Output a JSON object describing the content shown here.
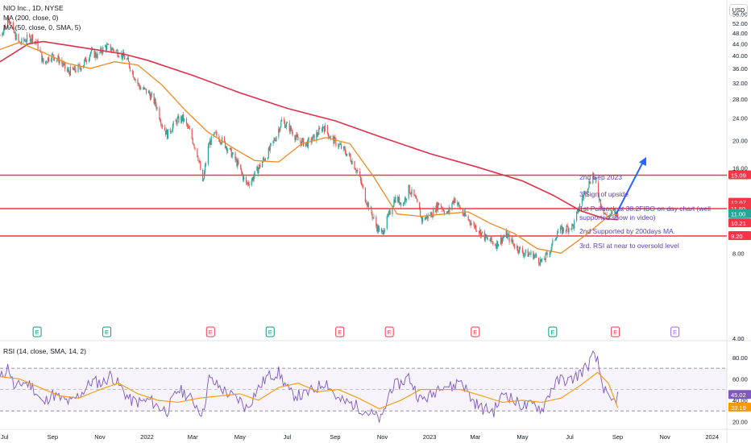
{
  "header": {
    "title": "NIO Inc., 1D, NYSE",
    "ma200_label": "MA (200, close, 0)",
    "ma50_label": "MA (50, close, 0, SMA, 5)",
    "currency": "USD"
  },
  "annotations": {
    "line1": "2nd Sep 2023",
    "line2": "3 Sign of upside",
    "line3": "1st Pullback at 38.2FIBO on day chart (well supported show in video)",
    "line4": "2nd Supported by 200days MA.",
    "line5": "3rd. RSI at near to oversold level"
  },
  "rsi_label": "RSI (14, close, SMA, 14, 2)",
  "colors": {
    "up": "#26a69a",
    "down": "#ef5350",
    "ma200": "#e0304a",
    "ma50": "#f08a24",
    "rsi": "#7e57c2",
    "rsi_ma": "#ff9800",
    "hline": "#f23645",
    "annotation": "#5c3fb8",
    "arrow": "#2962ff",
    "earnings_past_up": "#089981",
    "earnings_past_down": "#f23645",
    "earnings_future": "#9c6ade"
  },
  "chart_data": [
    {
      "type": "candlestick",
      "title": "NIO Inc., 1D, NYSE",
      "y_scale": "log",
      "ylim": [
        4,
        62
      ],
      "y_ticks": [
        "56.00",
        "52.00",
        "48.00",
        "44.00",
        "40.00",
        "36.00",
        "32.00",
        "28.00",
        "24.00",
        "20.00",
        "16.00",
        "12.00",
        "8.00",
        "4.00"
      ],
      "x_ticks": [
        "Jul",
        "Sep",
        "Nov",
        "2022",
        "Mar",
        "May",
        "Jul",
        "Sep",
        "Nov",
        "2023",
        "Mar",
        "May",
        "Jul",
        "Sep",
        "Nov",
        "2024"
      ],
      "x_range": [
        "2021-06-25",
        "2024-01-20"
      ],
      "close_path": [
        [
          "2021-06-25",
          47.0
        ],
        [
          "2021-07-02",
          51.0
        ],
        [
          "2021-07-06",
          55.0
        ],
        [
          "2021-07-12",
          48.5
        ],
        [
          "2021-07-20",
          44.0
        ],
        [
          "2021-07-28",
          45.5
        ],
        [
          "2021-08-05",
          46.5
        ],
        [
          "2021-08-12",
          44.0
        ],
        [
          "2021-08-20",
          37.5
        ],
        [
          "2021-08-30",
          40.0
        ],
        [
          "2021-09-10",
          38.5
        ],
        [
          "2021-09-20",
          35.0
        ],
        [
          "2021-09-30",
          35.5
        ],
        [
          "2021-10-10",
          37.0
        ],
        [
          "2021-10-20",
          41.0
        ],
        [
          "2021-10-29",
          40.0
        ],
        [
          "2021-11-08",
          43.0
        ],
        [
          "2021-11-18",
          42.0
        ],
        [
          "2021-11-28",
          40.5
        ],
        [
          "2021-12-06",
          38.5
        ],
        [
          "2021-12-15",
          34.0
        ],
        [
          "2021-12-22",
          31.0
        ],
        [
          "2022-01-03",
          29.5
        ],
        [
          "2022-01-12",
          27.0
        ],
        [
          "2022-01-20",
          23.0
        ],
        [
          "2022-01-27",
          21.0
        ],
        [
          "2022-02-08",
          23.5
        ],
        [
          "2022-02-16",
          24.0
        ],
        [
          "2022-02-25",
          21.5
        ],
        [
          "2022-03-08",
          17.5
        ],
        [
          "2022-03-14",
          14.0
        ],
        [
          "2022-03-22",
          19.5
        ],
        [
          "2022-03-30",
          21.0
        ],
        [
          "2022-04-08",
          20.0
        ],
        [
          "2022-04-20",
          18.0
        ],
        [
          "2022-04-28",
          16.5
        ],
        [
          "2022-05-09",
          14.0
        ],
        [
          "2022-05-16",
          14.5
        ],
        [
          "2022-05-25",
          16.0
        ],
        [
          "2022-06-06",
          18.0
        ],
        [
          "2022-06-16",
          20.5
        ],
        [
          "2022-06-24",
          23.5
        ],
        [
          "2022-07-05",
          22.0
        ],
        [
          "2022-07-15",
          20.0
        ],
        [
          "2022-07-26",
          19.5
        ],
        [
          "2022-08-05",
          20.5
        ],
        [
          "2022-08-17",
          22.5
        ],
        [
          "2022-08-26",
          20.5
        ],
        [
          "2022-09-08",
          19.0
        ],
        [
          "2022-09-20",
          17.5
        ],
        [
          "2022-09-30",
          15.5
        ],
        [
          "2022-10-10",
          12.5
        ],
        [
          "2022-10-24",
          10.0
        ],
        [
          "2022-10-31",
          9.3
        ],
        [
          "2022-11-10",
          11.0
        ],
        [
          "2022-11-17",
          12.5
        ],
        [
          "2022-11-28",
          12.0
        ],
        [
          "2022-12-05",
          13.5
        ],
        [
          "2022-12-13",
          12.5
        ],
        [
          "2022-12-22",
          10.5
        ],
        [
          "2023-01-04",
          11.0
        ],
        [
          "2023-01-13",
          12.0
        ],
        [
          "2023-01-24",
          11.0
        ],
        [
          "2023-02-02",
          12.5
        ],
        [
          "2023-02-13",
          11.0
        ],
        [
          "2023-02-28",
          10.0
        ],
        [
          "2023-03-15",
          9.0
        ],
        [
          "2023-03-28",
          8.6
        ],
        [
          "2023-04-10",
          9.3
        ],
        [
          "2023-04-21",
          8.5
        ],
        [
          "2023-05-03",
          8.0
        ],
        [
          "2023-05-15",
          7.9
        ],
        [
          "2023-05-26",
          7.4
        ],
        [
          "2023-06-06",
          8.2
        ],
        [
          "2023-06-15",
          9.5
        ],
        [
          "2023-06-27",
          9.8
        ],
        [
          "2023-07-06",
          10.0
        ],
        [
          "2023-07-17",
          12.5
        ],
        [
          "2023-07-25",
          14.0
        ],
        [
          "2023-07-31",
          15.2
        ],
        [
          "2023-08-04",
          14.0
        ],
        [
          "2023-08-10",
          12.0
        ],
        [
          "2023-08-17",
          10.8
        ],
        [
          "2023-08-25",
          11.0
        ],
        [
          "2023-09-01",
          11.0
        ]
      ],
      "ma200": [
        [
          "2021-06-25",
          38.0
        ],
        [
          "2021-08-01",
          44.0
        ],
        [
          "2021-08-20",
          44.8
        ],
        [
          "2021-10-01",
          43.0
        ],
        [
          "2021-12-01",
          40.5
        ],
        [
          "2022-01-01",
          38.5
        ],
        [
          "2022-03-01",
          34.0
        ],
        [
          "2022-05-01",
          29.5
        ],
        [
          "2022-07-01",
          26.0
        ],
        [
          "2022-09-01",
          23.5
        ],
        [
          "2022-11-01",
          20.5
        ],
        [
          "2023-01-01",
          18.0
        ],
        [
          "2023-03-01",
          16.2
        ],
        [
          "2023-05-01",
          14.4
        ],
        [
          "2023-06-10",
          12.8
        ],
        [
          "2023-07-15",
          11.3
        ],
        [
          "2023-08-15",
          10.6
        ],
        [
          "2023-09-01",
          10.5
        ]
      ],
      "ma50": [
        [
          "2021-06-25",
          42.0
        ],
        [
          "2021-07-20",
          44.5
        ],
        [
          "2021-08-20",
          41.0
        ],
        [
          "2021-09-20",
          37.5
        ],
        [
          "2021-10-20",
          36.0
        ],
        [
          "2021-11-20",
          38.0
        ],
        [
          "2021-12-20",
          37.0
        ],
        [
          "2022-01-20",
          31.5
        ],
        [
          "2022-02-20",
          25.5
        ],
        [
          "2022-03-20",
          21.5
        ],
        [
          "2022-04-20",
          19.0
        ],
        [
          "2022-05-20",
          17.0
        ],
        [
          "2022-06-20",
          16.8
        ],
        [
          "2022-07-20",
          19.5
        ],
        [
          "2022-08-20",
          20.5
        ],
        [
          "2022-09-20",
          19.5
        ],
        [
          "2022-10-20",
          15.0
        ],
        [
          "2022-11-20",
          11.0
        ],
        [
          "2022-12-20",
          10.8
        ],
        [
          "2023-01-20",
          11.0
        ],
        [
          "2023-02-20",
          11.2
        ],
        [
          "2023-03-20",
          10.2
        ],
        [
          "2023-04-20",
          9.4
        ],
        [
          "2023-05-20",
          8.3
        ],
        [
          "2023-06-20",
          8.0
        ],
        [
          "2023-07-20",
          9.2
        ],
        [
          "2023-08-20",
          10.8
        ],
        [
          "2023-09-01",
          11.0
        ]
      ],
      "horizontal_levels": [
        15.09,
        11.5,
        9.2
      ],
      "price_labels": [
        {
          "value": 15.09,
          "text": "15.09",
          "color": "#f23645"
        },
        {
          "value": 12.07,
          "text": "12.07",
          "color": "#f23645"
        },
        {
          "value": 11.5,
          "text": "11.50",
          "color": "#f23645"
        },
        {
          "value": 11.0,
          "text": "11.00",
          "color": "#26a69a"
        },
        {
          "value": 10.21,
          "text": "10.21",
          "color": "#f23645"
        },
        {
          "value": 9.2,
          "text": "9.20",
          "color": "#f23645"
        }
      ],
      "arrow": {
        "from": [
          "2023-08-30",
          11.0
        ],
        "to": [
          "2023-10-08",
          17.5
        ]
      },
      "earnings": [
        {
          "date": "2021-08-12",
          "label": "E",
          "kind": "past_up"
        },
        {
          "date": "2021-11-10",
          "label": "E",
          "kind": "past_up"
        },
        {
          "date": "2022-03-24",
          "label": "E",
          "kind": "past_down"
        },
        {
          "date": "2022-06-09",
          "label": "E",
          "kind": "past_up"
        },
        {
          "date": "2022-09-07",
          "label": "E",
          "kind": "past_down"
        },
        {
          "date": "2022-11-10",
          "label": "E",
          "kind": "past_down"
        },
        {
          "date": "2023-03-01",
          "label": "E",
          "kind": "past_down"
        },
        {
          "date": "2023-06-09",
          "label": "E",
          "kind": "past_up"
        },
        {
          "date": "2023-08-29",
          "label": "E",
          "kind": "past_down"
        },
        {
          "date": "2023-11-14",
          "label": "E",
          "kind": "future"
        }
      ]
    },
    {
      "type": "line",
      "title": "RSI (14, close, SMA, 14, 2)",
      "ylim": [
        15,
        92
      ],
      "y_ticks": [
        "80.00",
        "60.00",
        "40.00",
        "20.00"
      ],
      "bands": [
        70,
        50,
        30
      ],
      "last_value": "45.02",
      "last_ma": "33.19",
      "rsi_path": [
        [
          "2021-06-25",
          60
        ],
        [
          "2021-07-06",
          72
        ],
        [
          "2021-07-14",
          50
        ],
        [
          "2021-07-25",
          57
        ],
        [
          "2021-08-05",
          54
        ],
        [
          "2021-08-20",
          36
        ],
        [
          "2021-08-30",
          46
        ],
        [
          "2021-09-15",
          40
        ],
        [
          "2021-09-25",
          38
        ],
        [
          "2021-10-10",
          48
        ],
        [
          "2021-10-22",
          58
        ],
        [
          "2021-11-05",
          56
        ],
        [
          "2021-11-15",
          64
        ],
        [
          "2021-11-28",
          52
        ],
        [
          "2021-12-10",
          40
        ],
        [
          "2021-12-22",
          38
        ],
        [
          "2022-01-05",
          40
        ],
        [
          "2022-01-15",
          34
        ],
        [
          "2022-01-27",
          30
        ],
        [
          "2022-02-10",
          50
        ],
        [
          "2022-02-20",
          46
        ],
        [
          "2022-03-05",
          36
        ],
        [
          "2022-03-14",
          27
        ],
        [
          "2022-03-22",
          60
        ],
        [
          "2022-04-05",
          52
        ],
        [
          "2022-04-20",
          44
        ],
        [
          "2022-05-01",
          40
        ],
        [
          "2022-05-10",
          32
        ],
        [
          "2022-05-20",
          46
        ],
        [
          "2022-06-05",
          62
        ],
        [
          "2022-06-20",
          66
        ],
        [
          "2022-07-05",
          46
        ],
        [
          "2022-07-20",
          44
        ],
        [
          "2022-08-05",
          50
        ],
        [
          "2022-08-20",
          58
        ],
        [
          "2022-09-05",
          40
        ],
        [
          "2022-09-25",
          36
        ],
        [
          "2022-10-10",
          30
        ],
        [
          "2022-10-25",
          24
        ],
        [
          "2022-10-31",
          21
        ],
        [
          "2022-11-12",
          52
        ],
        [
          "2022-11-25",
          56
        ],
        [
          "2022-12-05",
          62
        ],
        [
          "2022-12-20",
          40
        ],
        [
          "2023-01-05",
          45
        ],
        [
          "2023-01-15",
          56
        ],
        [
          "2023-01-30",
          52
        ],
        [
          "2023-02-10",
          60
        ],
        [
          "2023-02-25",
          40
        ],
        [
          "2023-03-10",
          32
        ],
        [
          "2023-03-25",
          30
        ],
        [
          "2023-04-08",
          48
        ],
        [
          "2023-04-22",
          38
        ],
        [
          "2023-05-06",
          34
        ],
        [
          "2023-05-18",
          36
        ],
        [
          "2023-05-26",
          31
        ],
        [
          "2023-06-08",
          52
        ],
        [
          "2023-06-20",
          60
        ],
        [
          "2023-07-01",
          58
        ],
        [
          "2023-07-12",
          64
        ],
        [
          "2023-07-24",
          72
        ],
        [
          "2023-07-31",
          82
        ],
        [
          "2023-08-06",
          76
        ],
        [
          "2023-08-12",
          56
        ],
        [
          "2023-08-20",
          40
        ],
        [
          "2023-08-27",
          38
        ],
        [
          "2023-09-01",
          45
        ]
      ],
      "rsi_ma_path": [
        [
          "2021-06-25",
          62
        ],
        [
          "2021-07-20",
          60
        ],
        [
          "2021-08-15",
          52
        ],
        [
          "2021-09-10",
          44
        ],
        [
          "2021-10-05",
          42
        ],
        [
          "2021-11-01",
          50
        ],
        [
          "2021-11-25",
          56
        ],
        [
          "2021-12-20",
          46
        ],
        [
          "2022-01-15",
          40
        ],
        [
          "2022-02-10",
          38
        ],
        [
          "2022-03-10",
          42
        ],
        [
          "2022-04-05",
          44
        ],
        [
          "2022-05-01",
          46
        ],
        [
          "2022-05-25",
          40
        ],
        [
          "2022-06-20",
          52
        ],
        [
          "2022-07-15",
          56
        ],
        [
          "2022-08-10",
          48
        ],
        [
          "2022-09-05",
          50
        ],
        [
          "2022-10-01",
          42
        ],
        [
          "2022-10-28",
          32
        ],
        [
          "2022-11-25",
          40
        ],
        [
          "2022-12-20",
          50
        ],
        [
          "2023-01-15",
          50
        ],
        [
          "2023-02-10",
          50
        ],
        [
          "2023-03-10",
          44
        ],
        [
          "2023-04-05",
          38
        ],
        [
          "2023-05-01",
          40
        ],
        [
          "2023-05-26",
          38
        ],
        [
          "2023-06-20",
          42
        ],
        [
          "2023-07-15",
          54
        ],
        [
          "2023-08-06",
          66
        ],
        [
          "2023-08-20",
          56
        ],
        [
          "2023-09-01",
          33
        ]
      ]
    }
  ]
}
